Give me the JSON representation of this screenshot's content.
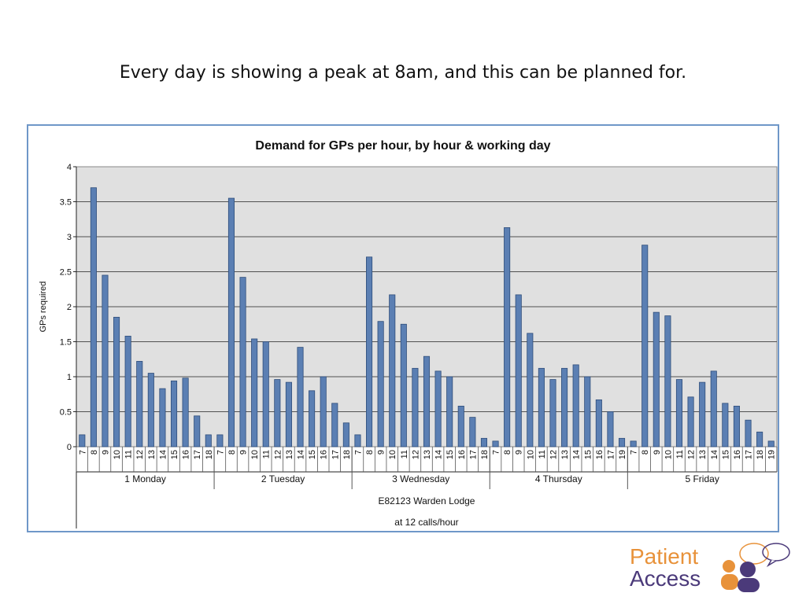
{
  "slide": {
    "headline": "Every day is showing a peak at 8am, and this can be planned for."
  },
  "logo": {
    "line1": "Patient",
    "line2": "Access",
    "colors": {
      "orange": "#e8923a",
      "purple": "#4b3a7a"
    }
  },
  "chart_data": {
    "type": "bar",
    "title": "Demand for GPs per hour, by hour & working day",
    "ylabel": "GPs required",
    "ylim": [
      0,
      4
    ],
    "yticks": [
      "0",
      "0.5",
      "1",
      "1.5",
      "2",
      "2.5",
      "3",
      "3.5",
      "4"
    ],
    "grid": true,
    "legend": "none",
    "bar_color": "#5b7fb3",
    "plot_bg": "#e0e0e0",
    "groups": [
      {
        "day": "1 Monday",
        "hours": [
          "7",
          "8",
          "9",
          "10",
          "11",
          "12",
          "13",
          "14",
          "15",
          "16",
          "17",
          "18"
        ],
        "values": [
          0.17,
          3.7,
          2.45,
          1.85,
          1.58,
          1.22,
          1.05,
          0.83,
          0.94,
          0.98,
          0.44,
          0.17
        ]
      },
      {
        "day": "2 Tuesday",
        "hours": [
          "7",
          "8",
          "9",
          "10",
          "11",
          "12",
          "13",
          "14",
          "15",
          "16",
          "17",
          "18"
        ],
        "values": [
          0.17,
          3.55,
          2.42,
          1.54,
          1.5,
          0.96,
          0.92,
          1.42,
          0.8,
          1.0,
          0.62,
          0.34
        ]
      },
      {
        "day": "3 Wednesday",
        "hours": [
          "7",
          "8",
          "9",
          "10",
          "11",
          "12",
          "13",
          "14",
          "15",
          "16",
          "17",
          "18"
        ],
        "values": [
          0.17,
          2.71,
          1.79,
          2.17,
          1.75,
          1.12,
          1.29,
          1.08,
          1.0,
          0.58,
          0.42,
          0.12
        ]
      },
      {
        "day": "4 Thursday",
        "hours": [
          "7",
          "8",
          "9",
          "10",
          "11",
          "12",
          "13",
          "14",
          "15",
          "16",
          "17",
          "19"
        ],
        "values": [
          0.08,
          3.13,
          2.17,
          1.62,
          1.12,
          0.96,
          1.12,
          1.17,
          1.0,
          0.67,
          0.5,
          0.12
        ]
      },
      {
        "day": "5 Friday",
        "hours": [
          "7",
          "8",
          "9",
          "10",
          "11",
          "12",
          "13",
          "14",
          "15",
          "16",
          "17",
          "18",
          "19"
        ],
        "values": [
          0.08,
          2.88,
          1.92,
          1.87,
          0.96,
          0.71,
          0.92,
          1.08,
          0.62,
          0.58,
          0.38,
          0.21,
          0.08
        ]
      }
    ],
    "category_labels": [
      "E82123 Warden Lodge",
      "at  12 calls/hour"
    ]
  }
}
